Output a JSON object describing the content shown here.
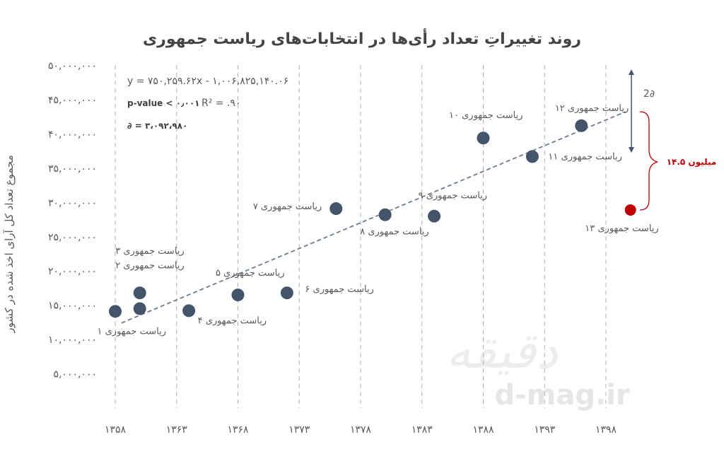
{
  "chart_data": {
    "type": "scatter",
    "title": "روند تغییراتِ تعداد رأی‌ها در انتخابات‌های ریاست جمهوری",
    "ylabel": "مجموع تعداد کل آرای اخذ شده در کشور",
    "xlim": [
      1358,
      1399
    ],
    "ylim": [
      0,
      50000000
    ],
    "x_ticks": [
      "۱۳۵۸",
      "۱۳۶۳",
      "۱۳۶۸",
      "۱۳۷۳",
      "۱۳۷۸",
      "۱۳۸۳",
      "۱۳۸۸",
      "۱۳۹۳",
      "۱۳۹۸"
    ],
    "y_ticks": [
      "۵,۰۰۰,۰۰۰",
      "۱۰,۰۰۰,۰۰۰",
      "۱۵,۰۰۰,۰۰۰",
      "۲۰,۰۰۰,۰۰۰",
      "۲۵,۰۰۰,۰۰۰",
      "۳۰,۰۰۰,۰۰۰",
      "۳۵,۰۰۰,۰۰۰",
      "۴۰,۰۰۰,۰۰۰",
      "۴۵,۰۰۰,۰۰۰",
      "۵۰,۰۰۰,۰۰۰"
    ],
    "points": [
      {
        "x": 1358,
        "y": 14100000,
        "label": "ریاست جمهوری ۱"
      },
      {
        "x": 1360,
        "y": 14500000,
        "label": "ریاست جمهوری ۲"
      },
      {
        "x": 1360,
        "y": 16800000,
        "label": "ریاست جمهوری ۳"
      },
      {
        "x": 1364,
        "y": 14200000,
        "label": "ریاست جمهوری ۴"
      },
      {
        "x": 1368,
        "y": 16500000,
        "label": "ریاست جمهوری ۵"
      },
      {
        "x": 1372,
        "y": 16800000,
        "label": "ریاست جمهوری ۶"
      },
      {
        "x": 1376,
        "y": 29100000,
        "label": "ریاست جمهوری ۷"
      },
      {
        "x": 1380,
        "y": 28200000,
        "label": "ریاست جمهوری ۸"
      },
      {
        "x": 1384,
        "y": 28000000,
        "label": "ریاست جمهوری ۹"
      },
      {
        "x": 1388,
        "y": 39400000,
        "label": "ریاست جمهوری ۱۰"
      },
      {
        "x": 1392,
        "y": 36700000,
        "label": "ریاست جمهوری ۱۱"
      },
      {
        "x": 1396,
        "y": 41200000,
        "label": "ریاست جمهوری ۱۲"
      },
      {
        "x": 1400,
        "y": 28900000,
        "label": "ریاست جمهوری ۱۳",
        "highlight": true
      }
    ],
    "trendline": {
      "slope": 750259.62,
      "intercept": -1006825140.06
    },
    "annotations": {
      "equation": "y = ۷۵۰,۲۵۹.۶۲x - ۱,۰۰۶,۸۲۵,۱۴۰.۰۶",
      "pvalue": "p-value < ۰٫۰۰۱",
      "r2": "R² = .۹۰",
      "sigma": "∂ = ۳،۰۹۲،۹۸۰",
      "two_sigma": "2∂",
      "gap": "۱۴.۵ میلیون"
    },
    "colors": {
      "point": "#44546a",
      "highlight": "#c00000",
      "trend": "#6d7b91",
      "bracket": "#44546a",
      "red": "#c00000"
    }
  },
  "watermark": {
    "site": "d-mag.ir",
    "logo": "دقیقه"
  }
}
